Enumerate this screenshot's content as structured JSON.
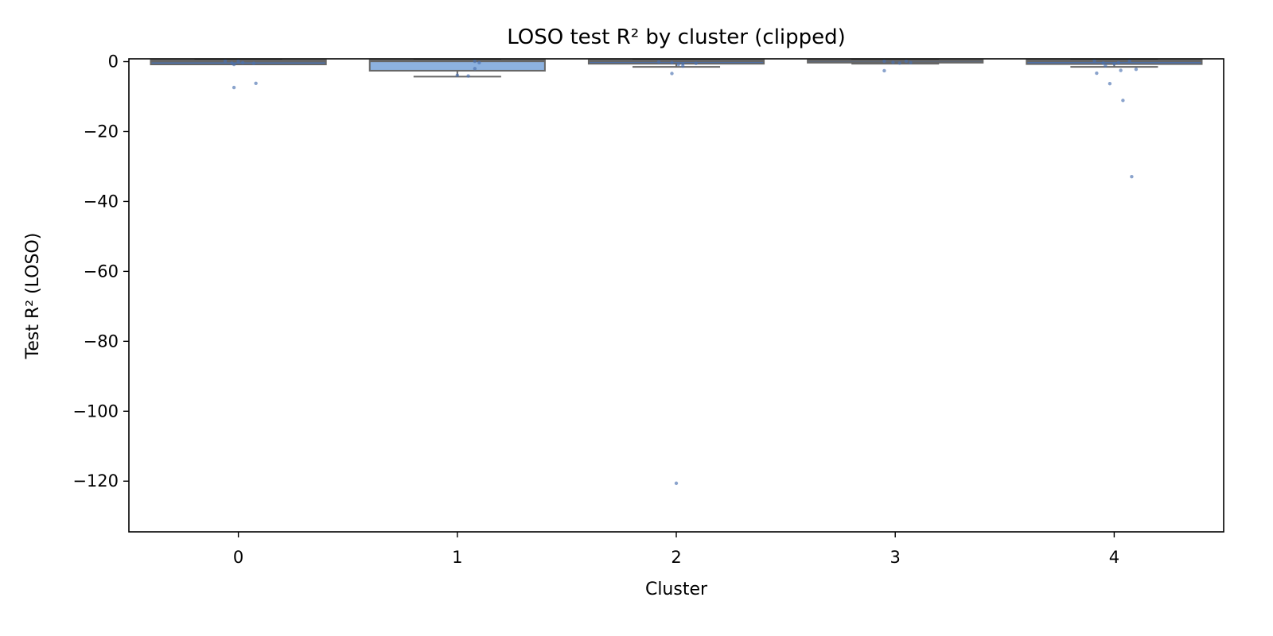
{
  "chart_data": {
    "type": "box",
    "title": "LOSO test R² by cluster (clipped)",
    "xlabel": "Cluster",
    "ylabel": "Test R² (LOSO)",
    "categories": [
      "0",
      "1",
      "2",
      "3",
      "4"
    ],
    "ylim": [
      -134.5,
      0.8
    ],
    "yticks": [
      0,
      -20,
      -40,
      -60,
      -80,
      -100,
      -120
    ],
    "ytick_labels": [
      "0",
      "−20",
      "−40",
      "−60",
      "−80",
      "−100",
      "−120"
    ],
    "grid": false,
    "legend": "none",
    "boxes": [
      {
        "category": "0",
        "q1": -0.8,
        "median": 0.0,
        "q3": 0.4,
        "whisker_low": -0.8,
        "whisker_high": 0.5,
        "color": "#4c72b0"
      },
      {
        "category": "1",
        "q1": -2.6,
        "median": 0.1,
        "q3": 0.4,
        "whisker_low": -4.3,
        "whisker_high": 0.5,
        "color": "#8db2e0"
      },
      {
        "category": "2",
        "q1": -0.6,
        "median": 0.1,
        "q3": 0.4,
        "whisker_low": -1.5,
        "whisker_high": 0.5,
        "color": "#4c72b0"
      },
      {
        "category": "3",
        "q1": -0.3,
        "median": 0.2,
        "q3": 0.4,
        "whisker_low": -0.6,
        "whisker_high": 0.5,
        "color": "#4c72b0"
      },
      {
        "category": "4",
        "q1": -0.7,
        "median": 0.1,
        "q3": 0.4,
        "whisker_low": -1.5,
        "whisker_high": 0.5,
        "color": "#4c72b0"
      }
    ],
    "points": [
      {
        "category": "0",
        "offset": -0.06,
        "value": 0.2
      },
      {
        "category": "0",
        "offset": -0.03,
        "value": -0.4
      },
      {
        "category": "0",
        "offset": -0.02,
        "value": -0.8
      },
      {
        "category": "0",
        "offset": -0.02,
        "value": -7.4
      },
      {
        "category": "0",
        "offset": 0.0,
        "value": 0.1
      },
      {
        "category": "0",
        "offset": 0.02,
        "value": -0.3
      },
      {
        "category": "0",
        "offset": 0.07,
        "value": -0.5
      },
      {
        "category": "0",
        "offset": 0.08,
        "value": -6.2
      },
      {
        "category": "1",
        "offset": 0.0,
        "value": -3.9
      },
      {
        "category": "1",
        "offset": 0.05,
        "value": -4.1
      },
      {
        "category": "1",
        "offset": 0.08,
        "value": -2.0
      },
      {
        "category": "1",
        "offset": 0.08,
        "value": 0.1
      },
      {
        "category": "1",
        "offset": 0.1,
        "value": -0.3
      },
      {
        "category": "2",
        "offset": -0.08,
        "value": -0.1
      },
      {
        "category": "2",
        "offset": -0.02,
        "value": -0.3
      },
      {
        "category": "2",
        "offset": -0.02,
        "value": -3.4
      },
      {
        "category": "2",
        "offset": 0.0,
        "value": -120.6
      },
      {
        "category": "2",
        "offset": 0.01,
        "value": -0.8
      },
      {
        "category": "2",
        "offset": 0.03,
        "value": -0.6
      },
      {
        "category": "2",
        "offset": 0.03,
        "value": -1.3
      },
      {
        "category": "2",
        "offset": 0.09,
        "value": -0.5
      },
      {
        "category": "3",
        "offset": -0.05,
        "value": 0.1
      },
      {
        "category": "3",
        "offset": -0.05,
        "value": -2.6
      },
      {
        "category": "3",
        "offset": -0.01,
        "value": -0.2
      },
      {
        "category": "3",
        "offset": 0.02,
        "value": -0.4
      },
      {
        "category": "3",
        "offset": 0.05,
        "value": 0.1
      },
      {
        "category": "3",
        "offset": 0.07,
        "value": -0.3
      },
      {
        "category": "4",
        "offset": -0.09,
        "value": 0.2
      },
      {
        "category": "4",
        "offset": -0.08,
        "value": -3.3
      },
      {
        "category": "4",
        "offset": -0.05,
        "value": -0.4
      },
      {
        "category": "4",
        "offset": -0.04,
        "value": -1.2
      },
      {
        "category": "4",
        "offset": -0.02,
        "value": -6.3
      },
      {
        "category": "4",
        "offset": 0.0,
        "value": -0.6
      },
      {
        "category": "4",
        "offset": 0.02,
        "value": -0.3
      },
      {
        "category": "4",
        "offset": 0.03,
        "value": -2.5
      },
      {
        "category": "4",
        "offset": 0.04,
        "value": -11.1
      },
      {
        "category": "4",
        "offset": 0.07,
        "value": 0.1
      },
      {
        "category": "4",
        "offset": 0.08,
        "value": -32.9
      },
      {
        "category": "4",
        "offset": 0.1,
        "value": -2.2
      }
    ],
    "colors": {
      "box_edge": "#666666",
      "point": "#4c72b0",
      "highlight_box": "#8db2e0"
    }
  }
}
